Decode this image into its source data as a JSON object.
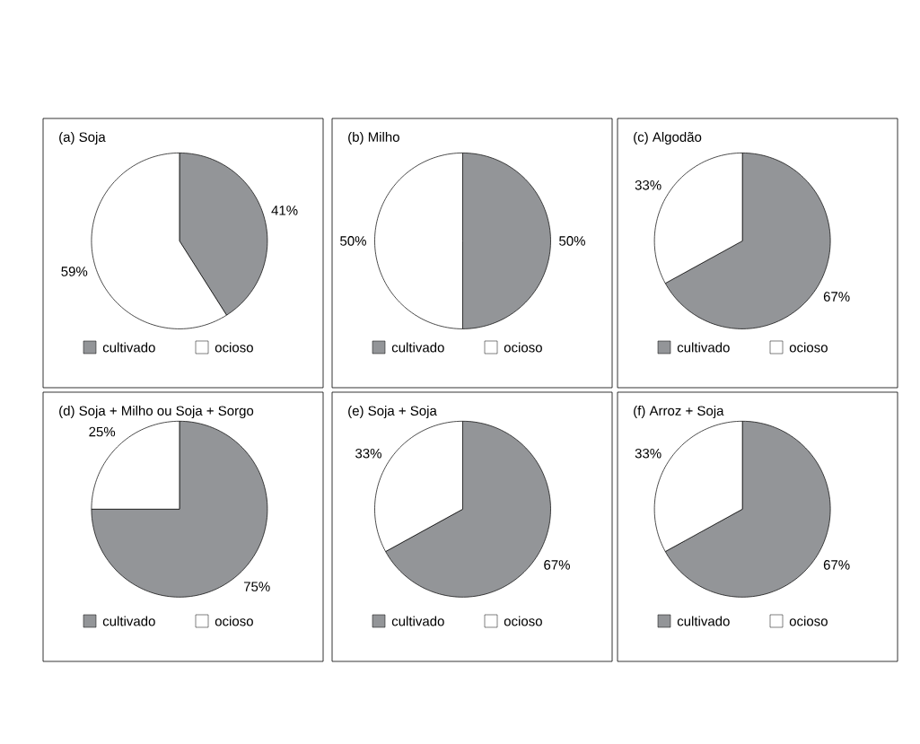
{
  "chart_data": [
    {
      "type": "pie",
      "title": "(a) Soja",
      "categories": [
        "cultivado",
        "ocioso"
      ],
      "values": [
        41,
        59
      ],
      "colors": [
        "#939598",
        "#ffffff"
      ],
      "value_labels": [
        "41%",
        "59%"
      ],
      "legend": "bottom"
    },
    {
      "type": "pie",
      "title": "(b) Milho",
      "categories": [
        "cultivado",
        "ocioso"
      ],
      "values": [
        50,
        50
      ],
      "colors": [
        "#939598",
        "#ffffff"
      ],
      "value_labels": [
        "50%",
        "50%"
      ],
      "legend": "bottom"
    },
    {
      "type": "pie",
      "title": "(c) Algodão",
      "categories": [
        "cultivado",
        "ocioso"
      ],
      "values": [
        67,
        33
      ],
      "colors": [
        "#939598",
        "#ffffff"
      ],
      "value_labels": [
        "67%",
        "33%"
      ],
      "legend": "bottom"
    },
    {
      "type": "pie",
      "title": "(d) Soja + Milho ou Soja + Sorgo",
      "categories": [
        "cultivado",
        "ocioso"
      ],
      "values": [
        75,
        25
      ],
      "colors": [
        "#939598",
        "#ffffff"
      ],
      "value_labels": [
        "75%",
        "25%"
      ],
      "legend": "bottom"
    },
    {
      "type": "pie",
      "title": "(e) Soja + Soja",
      "categories": [
        "cultivado",
        "ocioso"
      ],
      "values": [
        67,
        33
      ],
      "colors": [
        "#939598",
        "#ffffff"
      ],
      "value_labels": [
        "67%",
        "33%"
      ],
      "legend": "bottom"
    },
    {
      "type": "pie",
      "title": "(f) Arroz + Soja",
      "categories": [
        "cultivado",
        "ocioso"
      ],
      "values": [
        67,
        33
      ],
      "colors": [
        "#939598",
        "#ffffff"
      ],
      "value_labels": [
        "67%",
        "33%"
      ],
      "legend": "bottom"
    }
  ]
}
